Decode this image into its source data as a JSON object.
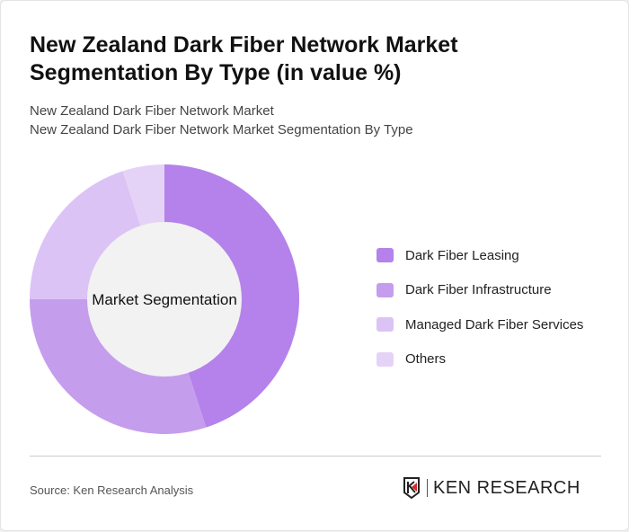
{
  "title": "New Zealand Dark Fiber Network Market Segmentation By Type (in value %)",
  "subtitle1": "New Zealand Dark Fiber Network Market",
  "subtitle2": "New Zealand Dark Fiber Network Market Segmentation By Type",
  "source": "Source: Ken Research Analysis",
  "logo_text": "KEN RESEARCH",
  "chart_data": {
    "type": "pie",
    "donut": true,
    "center_label": "Market Segmentation",
    "categories": [
      "Dark Fiber Leasing",
      "Dark Fiber Infrastructure",
      "Managed Dark Fiber Services",
      "Others"
    ],
    "values": [
      45,
      30,
      20,
      5
    ],
    "colors": [
      "#b482ea",
      "#c59ded",
      "#dcc3f5",
      "#e5d3f7"
    ],
    "legend_position": "right"
  }
}
